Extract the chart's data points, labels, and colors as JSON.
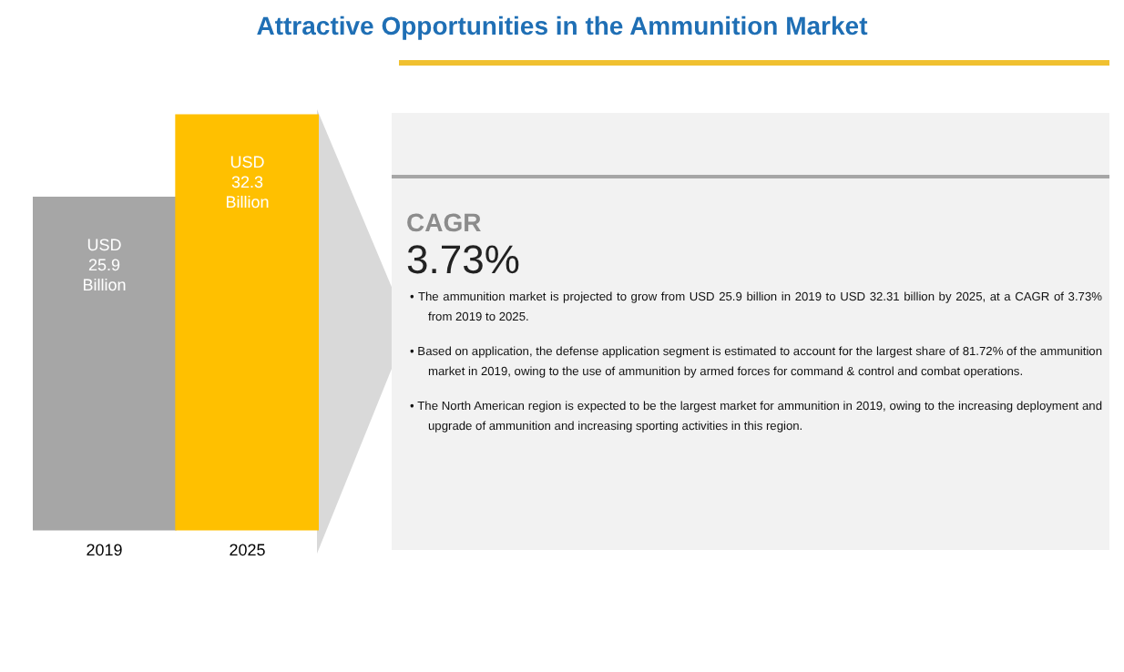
{
  "chart_data": [
    {
      "type": "bar",
      "title": "Attractive Opportunities in the Ammunition Market",
      "categories": [
        "2019",
        "2025"
      ],
      "values": [
        25.9,
        32.3
      ],
      "colors": [
        "#a6a6a6",
        "#ffc000"
      ],
      "tick_labels": "x",
      "value_labels": [
        "USD 25.9 Billion",
        "USD 32.3 Billion"
      ],
      "grid": false,
      "legend": false
    },
    {
      "type": "other",
      "title": "CAGR",
      "subtitle": "3.73%",
      "annotations": [
        "• The ammunition market is projected to grow from USD 25.9 billion in 2019 to USD 32.31 billion by 2025, at a CAGR of 3.73% from 2019 to 2025.",
        "• Based on application, the defense application segment is estimated to account for the largest share of 81.72% of the ammunition market in 2019, owing to the use of ammunition by armed forces for command & control and combat operations.",
        "• The North American region is expected to be the largest market for ammunition in 2019, owing to the increasing deployment and upgrade of ammunition and increasing sporting activities in this region."
      ]
    }
  ]
}
